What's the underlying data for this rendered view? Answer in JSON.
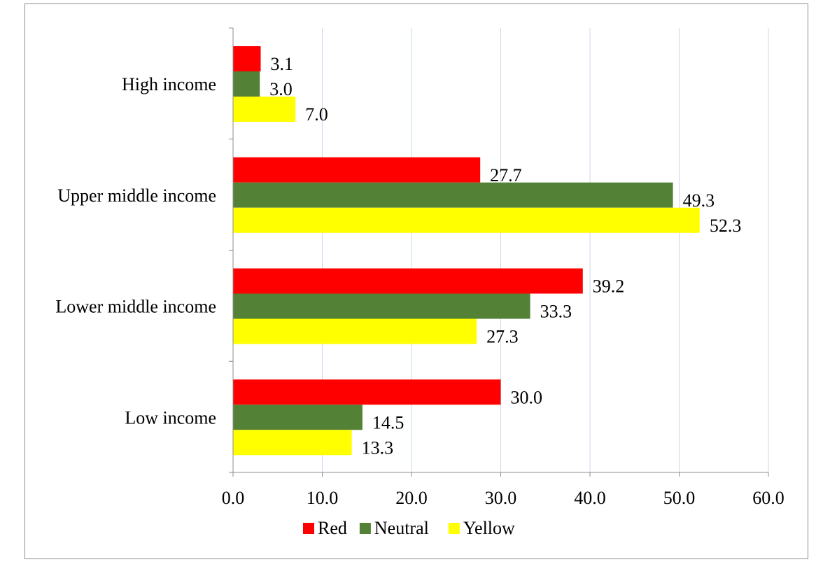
{
  "chart_data": {
    "type": "bar",
    "orientation": "horizontal",
    "title": "",
    "xlabel": "",
    "ylabel": "",
    "categories": [
      "Low income",
      "Lower middle income",
      "Upper middle income",
      "High income"
    ],
    "series": [
      {
        "name": "Red",
        "color": "#ff0000",
        "values": [
          30.0,
          39.2,
          27.7,
          3.1
        ],
        "labels": [
          "30.0",
          "39.2",
          "27.7",
          "3.1"
        ]
      },
      {
        "name": "Neutral",
        "color": "#538135",
        "values": [
          14.5,
          33.3,
          49.3,
          3.0
        ],
        "labels": [
          "14.5",
          "33.3",
          "49.3",
          "3.0"
        ]
      },
      {
        "name": "Yellow",
        "color": "#ffff00",
        "values": [
          13.3,
          27.3,
          52.3,
          7.0
        ],
        "labels": [
          "13.3",
          "27.3",
          "52.3",
          "7.0"
        ]
      }
    ],
    "xlim": [
      0,
      60
    ],
    "xticks": [
      0,
      10,
      20,
      30,
      40,
      50,
      60
    ],
    "xtick_labels": [
      "0.0",
      "10.0",
      "20.0",
      "30.0",
      "40.0",
      "50.0",
      "60.0"
    ],
    "grid": "vertical",
    "legend": "bottom-center"
  }
}
